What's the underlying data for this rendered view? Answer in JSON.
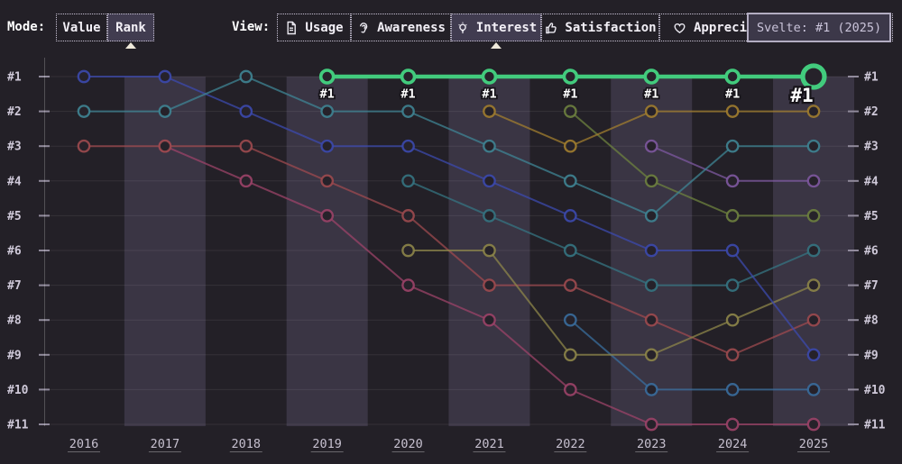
{
  "toolbar": {
    "mode": {
      "label": "Mode:",
      "buttons": [
        {
          "label": "Value",
          "selected": false
        },
        {
          "label": "Rank",
          "selected": true
        }
      ]
    },
    "view": {
      "label": "View:",
      "buttons": [
        {
          "label": "Usage",
          "icon": "file-icon",
          "selected": false
        },
        {
          "label": "Awareness",
          "icon": "ear-icon",
          "selected": false
        },
        {
          "label": "Interest",
          "icon": "lightbulb-icon",
          "selected": true
        },
        {
          "label": "Satisfaction",
          "icon": "thumbs-up-icon",
          "selected": false
        },
        {
          "label": "Appreciation",
          "icon": "heart-icon",
          "selected": false
        }
      ]
    }
  },
  "tooltip": {
    "text": "Svelte: #1 (2025)"
  },
  "chart_data": {
    "type": "line",
    "subtype": "bump-ranking",
    "years": [
      2016,
      2017,
      2018,
      2019,
      2020,
      2021,
      2022,
      2023,
      2024,
      2025
    ],
    "rank_labels": [
      "#1",
      "#2",
      "#3",
      "#4",
      "#5",
      "#6",
      "#7",
      "#8",
      "#9",
      "#10",
      "#11"
    ],
    "shaded_years": [
      2017,
      2019,
      2021,
      2023,
      2025
    ],
    "ylim": [
      1,
      11
    ],
    "grid": true,
    "legend": "none",
    "colors": {
      "background": "#232027",
      "band": "#3a3544",
      "grid": "rgba(255,255,255,0.08)",
      "axis_line": "rgba(255,255,255,0.22)",
      "tick": "#918b9c",
      "axis_text": "#cfc9d9",
      "year_text": "#c6c0cf",
      "dot_fill": "#26222a",
      "point_label_text": "#ffffff",
      "point_label_outline": "#17141a"
    },
    "series": [
      {
        "id": "series-crimson",
        "color": "#9c4368",
        "points": [
          [
            2017,
            3
          ],
          [
            2018,
            4
          ],
          [
            2019,
            5
          ],
          [
            2020,
            7
          ],
          [
            2021,
            8
          ],
          [
            2022,
            10
          ],
          [
            2023,
            11
          ],
          [
            2024,
            11
          ],
          [
            2025,
            11
          ]
        ]
      },
      {
        "id": "series-red",
        "color": "#9d4a4f",
        "points": [
          [
            2016,
            3
          ],
          [
            2017,
            3
          ],
          [
            2018,
            3
          ],
          [
            2019,
            4
          ],
          [
            2020,
            5
          ],
          [
            2021,
            7
          ],
          [
            2022,
            7
          ],
          [
            2023,
            8
          ],
          [
            2024,
            9
          ],
          [
            2025,
            8
          ]
        ]
      },
      {
        "id": "series-lightblue",
        "color": "#3a6d9d",
        "points": [
          [
            2022,
            8
          ],
          [
            2023,
            10
          ],
          [
            2024,
            10
          ],
          [
            2025,
            10
          ]
        ]
      },
      {
        "id": "series-darkteal",
        "color": "#357482",
        "points": [
          [
            2020,
            4
          ],
          [
            2021,
            5
          ],
          [
            2022,
            6
          ],
          [
            2023,
            7
          ],
          [
            2024,
            7
          ],
          [
            2025,
            6
          ]
        ]
      },
      {
        "id": "series-olive",
        "color": "#8d8549",
        "points": [
          [
            2020,
            6
          ],
          [
            2021,
            6
          ],
          [
            2022,
            9
          ],
          [
            2023,
            9
          ],
          [
            2024,
            8
          ],
          [
            2025,
            7
          ]
        ]
      },
      {
        "id": "series-purple",
        "color": "#7e58a0",
        "points": [
          [
            2023,
            3
          ],
          [
            2024,
            4
          ],
          [
            2025,
            4
          ]
        ]
      },
      {
        "id": "series-olivegreen",
        "color": "#6e813f",
        "points": [
          [
            2022,
            2
          ],
          [
            2023,
            4
          ],
          [
            2024,
            5
          ],
          [
            2025,
            5
          ]
        ]
      },
      {
        "id": "series-gold",
        "color": "#a17d2f",
        "points": [
          [
            2021,
            2
          ],
          [
            2022,
            3
          ],
          [
            2023,
            2
          ],
          [
            2024,
            2
          ],
          [
            2025,
            2
          ]
        ]
      },
      {
        "id": "series-blue",
        "color": "#3c49ae",
        "points": [
          [
            2016,
            1
          ],
          [
            2017,
            1
          ],
          [
            2018,
            2
          ],
          [
            2019,
            3
          ],
          [
            2020,
            3
          ],
          [
            2021,
            4
          ],
          [
            2022,
            5
          ],
          [
            2023,
            6
          ],
          [
            2024,
            6
          ],
          [
            2025,
            9
          ]
        ]
      },
      {
        "id": "series-teal",
        "color": "#3f8494",
        "points": [
          [
            2016,
            2
          ],
          [
            2017,
            2
          ],
          [
            2018,
            1
          ],
          [
            2019,
            2
          ],
          [
            2020,
            2
          ],
          [
            2021,
            3
          ],
          [
            2022,
            4
          ],
          [
            2023,
            5
          ],
          [
            2024,
            3
          ],
          [
            2025,
            3
          ]
        ]
      }
    ],
    "highlight_series": {
      "id": "svelte",
      "name": "Svelte",
      "color": "#42cb7d",
      "points": [
        [
          2019,
          1
        ],
        [
          2020,
          1
        ],
        [
          2021,
          1
        ],
        [
          2022,
          1
        ],
        [
          2023,
          1
        ],
        [
          2024,
          1
        ],
        [
          2025,
          1
        ]
      ],
      "point_label": "#1"
    }
  }
}
